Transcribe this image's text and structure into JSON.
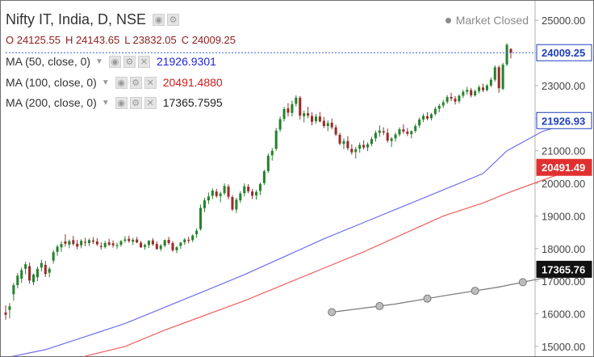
{
  "header": {
    "symbol": "Nifty IT, India, D, NSE",
    "market_status": "Market Closed"
  },
  "ohlc": {
    "open": "O 24125.55",
    "high": "H 24143.65",
    "low": "L 23832.05",
    "close": "C 24009.25"
  },
  "indicators": [
    {
      "label": "MA (50, close, 0)",
      "value": "21926.9301",
      "color": "#2323d8"
    },
    {
      "label": "MA (100, close, 0)",
      "value": "20491.4880",
      "color": "#d11a1a"
    },
    {
      "label": "MA (200, close, 0)",
      "value": "17365.7595",
      "color": "#222222"
    }
  ],
  "colors": {
    "up": "#27822e",
    "down": "#9b2b2b",
    "ma50": "#6d6df0",
    "ma100": "#f06060",
    "ma200": "#777777",
    "axis_text": "#444444"
  },
  "chart_data": {
    "type": "candlestick",
    "ylim": [
      14700,
      25600
    ],
    "y_ticks": [
      "15000.00",
      "16000.00",
      "17000.00",
      "18000.00",
      "19000.00",
      "20000.00",
      "21000.00",
      "22000.00",
      "23000.00",
      "24000.00",
      "25000.00"
    ],
    "price_labels": [
      {
        "text": "24009.25",
        "value": 24009.25,
        "style": "last"
      },
      {
        "text": "21926.93",
        "value": 21926.93,
        "style": "ma50"
      },
      {
        "text": "20491.49",
        "value": 20491.49,
        "style": "ma100"
      },
      {
        "text": "17365.76",
        "value": 17365.76,
        "style": "ma200"
      }
    ],
    "candles": [
      [
        16040,
        16260,
        15820,
        15970
      ],
      [
        16120,
        16330,
        15860,
        16230
      ],
      [
        16600,
        16950,
        16400,
        16880
      ],
      [
        16880,
        17250,
        16780,
        17170
      ],
      [
        17080,
        17420,
        16950,
        17340
      ],
      [
        17380,
        17600,
        17210,
        17520
      ],
      [
        17460,
        17570,
        16930,
        17020
      ],
      [
        16970,
        17240,
        16880,
        17200
      ],
      [
        17120,
        17450,
        17000,
        17380
      ],
      [
        17420,
        17660,
        17300,
        17560
      ],
      [
        17500,
        17620,
        17130,
        17220
      ],
      [
        17260,
        17440,
        17120,
        17380
      ],
      [
        17630,
        17960,
        17540,
        17890
      ],
      [
        17900,
        18120,
        17780,
        18060
      ],
      [
        18040,
        18230,
        17900,
        18140
      ],
      [
        18220,
        18440,
        18060,
        18150
      ],
      [
        18120,
        18280,
        18010,
        18230
      ],
      [
        18260,
        18390,
        18090,
        18140
      ],
      [
        18150,
        18270,
        17980,
        18060
      ],
      [
        18100,
        18290,
        18010,
        18240
      ],
      [
        18210,
        18330,
        18070,
        18180
      ],
      [
        18170,
        18310,
        18080,
        18260
      ],
      [
        18250,
        18350,
        18140,
        18210
      ],
      [
        18220,
        18320,
        18080,
        18130
      ],
      [
        18080,
        18190,
        17970,
        18050
      ],
      [
        18050,
        18240,
        18000,
        18170
      ],
      [
        18190,
        18300,
        18080,
        18120
      ],
      [
        18160,
        18250,
        18030,
        18100
      ],
      [
        18080,
        18180,
        17990,
        18110
      ],
      [
        18120,
        18260,
        18060,
        18230
      ],
      [
        18240,
        18380,
        18180,
        18280
      ],
      [
        18300,
        18400,
        18180,
        18230
      ],
      [
        18210,
        18330,
        18110,
        18270
      ],
      [
        18280,
        18360,
        18160,
        18190
      ],
      [
        18180,
        18240,
        18020,
        18040
      ],
      [
        18050,
        18150,
        17970,
        18110
      ],
      [
        18110,
        18260,
        18020,
        18240
      ],
      [
        18250,
        18320,
        18090,
        18130
      ],
      [
        18140,
        18220,
        17960,
        17990
      ],
      [
        17990,
        18140,
        17920,
        18090
      ],
      [
        18090,
        18280,
        18040,
        18260
      ],
      [
        18270,
        18360,
        18120,
        18170
      ],
      [
        18170,
        18230,
        17900,
        17950
      ],
      [
        17950,
        18080,
        17860,
        18040
      ],
      [
        18080,
        18210,
        17990,
        18180
      ],
      [
        18190,
        18320,
        18110,
        18280
      ],
      [
        18270,
        18360,
        18160,
        18240
      ],
      [
        18260,
        18440,
        18200,
        18400
      ],
      [
        18440,
        18620,
        18330,
        18550
      ],
      [
        18600,
        19350,
        18550,
        19250
      ],
      [
        19240,
        19560,
        19120,
        19480
      ],
      [
        19480,
        19720,
        19370,
        19600
      ],
      [
        19620,
        19850,
        19520,
        19780
      ],
      [
        19750,
        19830,
        19560,
        19610
      ],
      [
        19610,
        19750,
        19420,
        19690
      ],
      [
        19700,
        20000,
        19640,
        19920
      ],
      [
        19900,
        19970,
        19510,
        19590
      ],
      [
        19580,
        19640,
        19150,
        19200
      ],
      [
        19200,
        19560,
        19090,
        19500
      ],
      [
        19480,
        19760,
        19400,
        19690
      ],
      [
        19700,
        20000,
        19600,
        19910
      ],
      [
        19900,
        19980,
        19700,
        19760
      ],
      [
        19750,
        19830,
        19520,
        19620
      ],
      [
        19630,
        19800,
        19500,
        19740
      ],
      [
        19770,
        20030,
        19640,
        19980
      ],
      [
        20010,
        20420,
        19950,
        20370
      ],
      [
        20380,
        20920,
        20320,
        20850
      ],
      [
        20860,
        21090,
        20700,
        21000
      ],
      [
        21060,
        21700,
        21000,
        21620
      ],
      [
        21650,
        22050,
        21580,
        21970
      ],
      [
        21980,
        22350,
        21900,
        22280
      ],
      [
        22300,
        22460,
        22050,
        22170
      ],
      [
        22160,
        22540,
        22050,
        22430
      ],
      [
        22440,
        22700,
        22360,
        22630
      ],
      [
        22630,
        22680,
        21960,
        22080
      ],
      [
        22060,
        22230,
        21870,
        22150
      ],
      [
        22150,
        22350,
        22000,
        22080
      ],
      [
        22070,
        22180,
        21780,
        21890
      ],
      [
        21910,
        22130,
        21830,
        22050
      ],
      [
        22050,
        22190,
        21870,
        21900
      ],
      [
        21920,
        22040,
        21700,
        21760
      ],
      [
        21760,
        21930,
        21600,
        21850
      ],
      [
        21860,
        21990,
        21660,
        21720
      ],
      [
        21720,
        21800,
        21450,
        21500
      ],
      [
        21490,
        21550,
        21170,
        21220
      ],
      [
        21210,
        21380,
        21050,
        21300
      ],
      [
        21300,
        21450,
        21020,
        21080
      ],
      [
        21060,
        21200,
        20880,
        20950
      ],
      [
        20960,
        21120,
        20760,
        21050
      ],
      [
        21060,
        21250,
        20940,
        21180
      ],
      [
        21180,
        21320,
        21040,
        21100
      ],
      [
        21100,
        21260,
        20990,
        21200
      ],
      [
        21210,
        21430,
        21140,
        21360
      ],
      [
        21380,
        21620,
        21280,
        21550
      ],
      [
        21550,
        21780,
        21430,
        21620
      ],
      [
        21600,
        21720,
        21480,
        21560
      ],
      [
        21550,
        21680,
        21250,
        21310
      ],
      [
        21300,
        21420,
        21120,
        21380
      ],
      [
        21380,
        21560,
        21280,
        21500
      ],
      [
        21500,
        21720,
        21440,
        21660
      ],
      [
        21660,
        21810,
        21520,
        21590
      ],
      [
        21590,
        21700,
        21450,
        21520
      ],
      [
        21510,
        21630,
        21380,
        21600
      ],
      [
        21610,
        21820,
        21550,
        21760
      ],
      [
        21780,
        22020,
        21700,
        21960
      ],
      [
        21960,
        22140,
        21880,
        22070
      ],
      [
        22060,
        22180,
        21930,
        21990
      ],
      [
        22000,
        22160,
        21930,
        22120
      ],
      [
        22130,
        22350,
        22080,
        22290
      ],
      [
        22290,
        22440,
        22180,
        22380
      ],
      [
        22390,
        22560,
        22310,
        22490
      ],
      [
        22500,
        22710,
        22440,
        22650
      ],
      [
        22650,
        22780,
        22520,
        22600
      ],
      [
        22600,
        22680,
        22420,
        22510
      ],
      [
        22520,
        22730,
        22460,
        22690
      ],
      [
        22690,
        22870,
        22620,
        22810
      ],
      [
        22810,
        22960,
        22720,
        22870
      ],
      [
        22860,
        22930,
        22640,
        22700
      ],
      [
        22700,
        22880,
        22660,
        22830
      ],
      [
        22830,
        23010,
        22760,
        22950
      ],
      [
        22940,
        23060,
        22800,
        22860
      ],
      [
        22860,
        23050,
        22820,
        23000
      ],
      [
        23000,
        23250,
        22950,
        23180
      ],
      [
        23180,
        23620,
        23120,
        23560
      ],
      [
        23560,
        23620,
        22780,
        22920
      ],
      [
        22900,
        23700,
        22860,
        23640
      ],
      [
        23650,
        24300,
        23600,
        24250
      ],
      [
        24125.55,
        24143.65,
        23832.05,
        24009.25
      ]
    ],
    "ma50": [
      [
        0,
        14650
      ],
      [
        10,
        14900
      ],
      [
        20,
        15300
      ],
      [
        30,
        15700
      ],
      [
        40,
        16200
      ],
      [
        50,
        16700
      ],
      [
        60,
        17200
      ],
      [
        70,
        17750
      ],
      [
        80,
        18300
      ],
      [
        90,
        18800
      ],
      [
        100,
        19300
      ],
      [
        110,
        19800
      ],
      [
        120,
        20300
      ],
      [
        126,
        21000
      ],
      [
        135,
        21600
      ],
      [
        144,
        21926.93
      ]
    ],
    "ma100": [
      [
        20,
        14700
      ],
      [
        30,
        15000
      ],
      [
        40,
        15500
      ],
      [
        50,
        15950
      ],
      [
        60,
        16400
      ],
      [
        70,
        16900
      ],
      [
        80,
        17400
      ],
      [
        90,
        17900
      ],
      [
        100,
        18450
      ],
      [
        110,
        19000
      ],
      [
        120,
        19400
      ],
      [
        126,
        19700
      ],
      [
        135,
        20100
      ],
      [
        144,
        20491.49
      ]
    ],
    "ma200": [
      [
        82,
        16050
      ],
      [
        98,
        16300
      ],
      [
        110,
        16550
      ],
      [
        124,
        16820
      ],
      [
        136,
        17120
      ],
      [
        144,
        17365.76
      ]
    ],
    "ma200_markers": [
      82,
      94,
      106,
      118,
      130
    ]
  }
}
